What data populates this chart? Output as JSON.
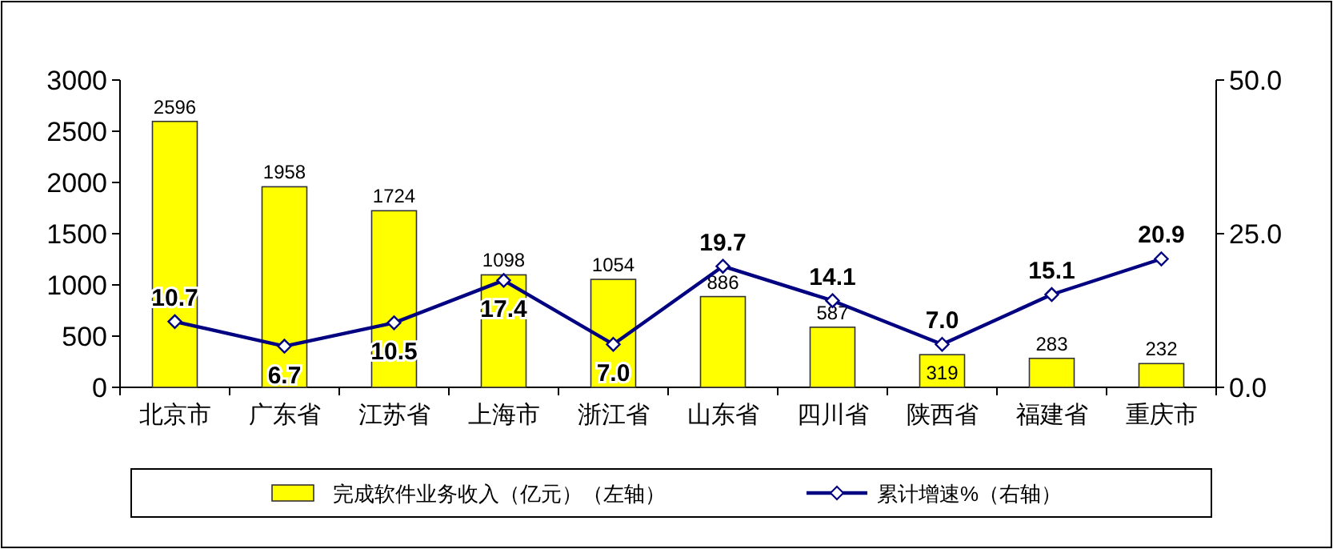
{
  "chart_data": {
    "type": "bar",
    "categories": [
      "北京市",
      "广东省",
      "江苏省",
      "上海市",
      "浙江省",
      "山东省",
      "四川省",
      "陕西省",
      "福建省",
      "重庆市"
    ],
    "series": [
      {
        "name": "完成软件业务收入（亿元）（左轴）",
        "color": "#ffff00",
        "values": [
          2596,
          1958,
          1724,
          1098,
          1054,
          886,
          587,
          319,
          283,
          232
        ],
        "value_labels": [
          "2596",
          "1958",
          "1724",
          "1098",
          "1054",
          "886",
          "587",
          "319",
          "283",
          "232"
        ]
      },
      {
        "name": "累计增速%（右轴）",
        "type": "line",
        "axis": "y2",
        "color": "#000080",
        "marker": "diamond",
        "values": [
          10.7,
          6.7,
          10.5,
          17.4,
          7.0,
          19.7,
          14.1,
          7.0,
          15.1,
          20.9
        ],
        "value_labels": [
          "10.7",
          "6.7",
          "10.5",
          "17.4",
          "7.0",
          "19.7",
          "14.1",
          "7.0",
          "15.1",
          "20.9"
        ]
      }
    ],
    "ylim": [
      0,
      3000
    ],
    "yticks": [
      0,
      500,
      1000,
      1500,
      2000,
      2500,
      3000
    ],
    "y2lim": [
      0,
      50
    ],
    "y2ticks": [
      {
        "value": 0,
        "label": "0.0"
      },
      {
        "value": 25,
        "label": "25.0"
      },
      {
        "value": 50,
        "label": "50.0"
      }
    ],
    "grid": false,
    "legend": "bottom"
  }
}
